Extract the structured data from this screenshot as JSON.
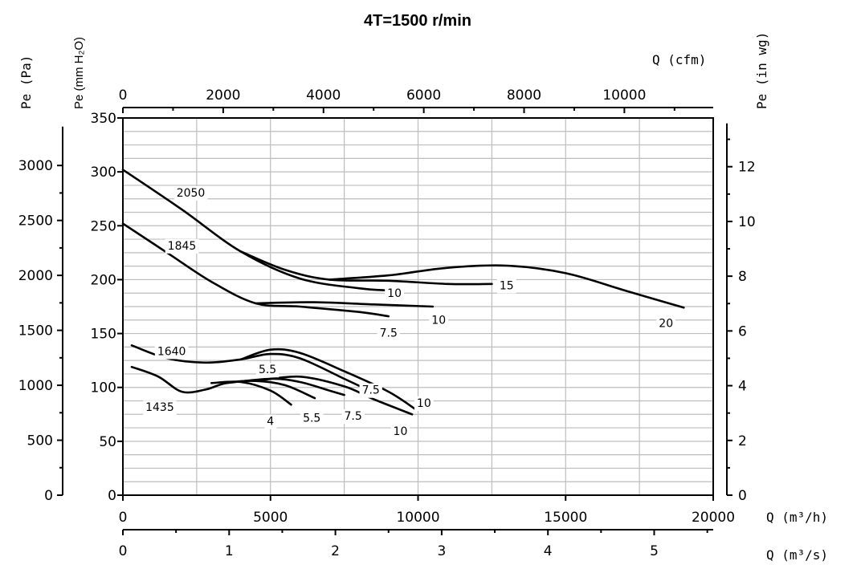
{
  "chart_data": {
    "type": "line",
    "title": "4T=1500 r/min",
    "x": {
      "label_m3h": "Q  (m³/h)",
      "label_m3s": "Q  (m³/s)",
      "label_cfm": "Q  (cfm)",
      "range": [
        0,
        20000
      ],
      "ticks_m3h": [
        "0",
        "5000",
        "10000",
        "15000",
        "20000"
      ],
      "ticks_m3s": [
        "0",
        "1",
        "2",
        "3",
        "4",
        "5"
      ],
      "ticks_cfm": [
        "0",
        "2000",
        "4000",
        "6000",
        "8000",
        "10000"
      ]
    },
    "y": {
      "label_pa": "Pe  (Pa)",
      "label_mm": "Pe  (mm H₂O)",
      "label_inwg": "Pe  (in wg)",
      "range": [
        0,
        350
      ],
      "ticks_mm": [
        "0",
        "50",
        "100",
        "150",
        "200",
        "250",
        "300",
        "350"
      ],
      "ticks_pa": [
        "0",
        "500",
        "1000",
        "1500",
        "2000",
        "2500",
        "3000"
      ],
      "ticks_inwg": [
        "0",
        "2",
        "4",
        "6",
        "8",
        "10",
        "12"
      ]
    },
    "grid": true,
    "speed_labels": [
      {
        "text": "2050",
        "x": 2300,
        "y": 280
      },
      {
        "text": "1845",
        "x": 2000,
        "y": 231
      },
      {
        "text": "1640",
        "x": 1650,
        "y": 133
      },
      {
        "text": "1435",
        "x": 1250,
        "y": 81
      }
    ],
    "power_labels": [
      {
        "text": "10",
        "x": 9200,
        "y": 187
      },
      {
        "text": "15",
        "x": 13000,
        "y": 194
      },
      {
        "text": "20",
        "x": 18400,
        "y": 159
      },
      {
        "text": "10",
        "x": 10700,
        "y": 162
      },
      {
        "text": "7.5",
        "x": 9000,
        "y": 150
      },
      {
        "text": "5.5",
        "x": 4900,
        "y": 116
      },
      {
        "text": "7.5",
        "x": 8400,
        "y": 97
      },
      {
        "text": "10",
        "x": 10200,
        "y": 85
      },
      {
        "text": "10",
        "x": 9400,
        "y": 59
      },
      {
        "text": "4",
        "x": 5000,
        "y": 68
      },
      {
        "text": "5.5",
        "x": 6400,
        "y": 71
      },
      {
        "text": "7.5",
        "x": 7800,
        "y": 73
      }
    ],
    "series": [
      {
        "values": [
          [
            0,
            302
          ],
          [
            2000,
            265
          ],
          [
            4000,
            226
          ],
          [
            6000,
            201
          ],
          [
            8000,
            192
          ],
          [
            9000,
            190
          ]
        ]
      },
      {
        "values": [
          [
            4000,
            226
          ],
          [
            5500,
            209
          ],
          [
            7000,
            200
          ],
          [
            9000,
            199
          ],
          [
            11000,
            196
          ],
          [
            12500,
            196
          ]
        ]
      },
      {
        "values": [
          [
            7000,
            200
          ],
          [
            9000,
            204
          ],
          [
            11000,
            211
          ],
          [
            13000,
            213
          ],
          [
            15000,
            206
          ],
          [
            17000,
            190
          ],
          [
            19000,
            174
          ]
        ]
      },
      {
        "values": [
          [
            0,
            252
          ],
          [
            1500,
            225
          ],
          [
            3000,
            198
          ],
          [
            4500,
            178
          ],
          [
            6000,
            175
          ],
          [
            8000,
            170
          ],
          [
            9000,
            166
          ]
        ]
      },
      {
        "values": [
          [
            4500,
            178
          ],
          [
            6500,
            179
          ],
          [
            8500,
            177
          ],
          [
            10500,
            175
          ]
        ]
      },
      {
        "values": [
          [
            300,
            139
          ],
          [
            1500,
            127
          ],
          [
            2800,
            123
          ],
          [
            4000,
            126
          ],
          [
            5000,
            131
          ],
          [
            6000,
            127
          ],
          [
            7500,
            108
          ],
          [
            8500,
            95
          ]
        ]
      },
      {
        "values": [
          [
            4000,
            126
          ],
          [
            5000,
            135
          ],
          [
            6000,
            132
          ],
          [
            7500,
            115
          ],
          [
            9000,
            96
          ],
          [
            9900,
            80
          ]
        ]
      },
      {
        "values": [
          [
            300,
            119
          ],
          [
            1200,
            110
          ],
          [
            2000,
            96
          ],
          [
            2800,
            98
          ],
          [
            3500,
            104
          ],
          [
            4500,
            106
          ],
          [
            5500,
            102
          ],
          [
            6500,
            90
          ]
        ]
      },
      {
        "values": [
          [
            3000,
            104
          ],
          [
            4000,
            105
          ],
          [
            5000,
            97
          ],
          [
            5700,
            84
          ]
        ]
      },
      {
        "values": [
          [
            3500,
            104
          ],
          [
            5000,
            108
          ],
          [
            6000,
            105
          ],
          [
            7000,
            97
          ],
          [
            7500,
            93
          ]
        ]
      },
      {
        "values": [
          [
            4500,
            106
          ],
          [
            6000,
            110
          ],
          [
            7500,
            101
          ],
          [
            8500,
            89
          ],
          [
            9800,
            75
          ]
        ]
      }
    ]
  }
}
